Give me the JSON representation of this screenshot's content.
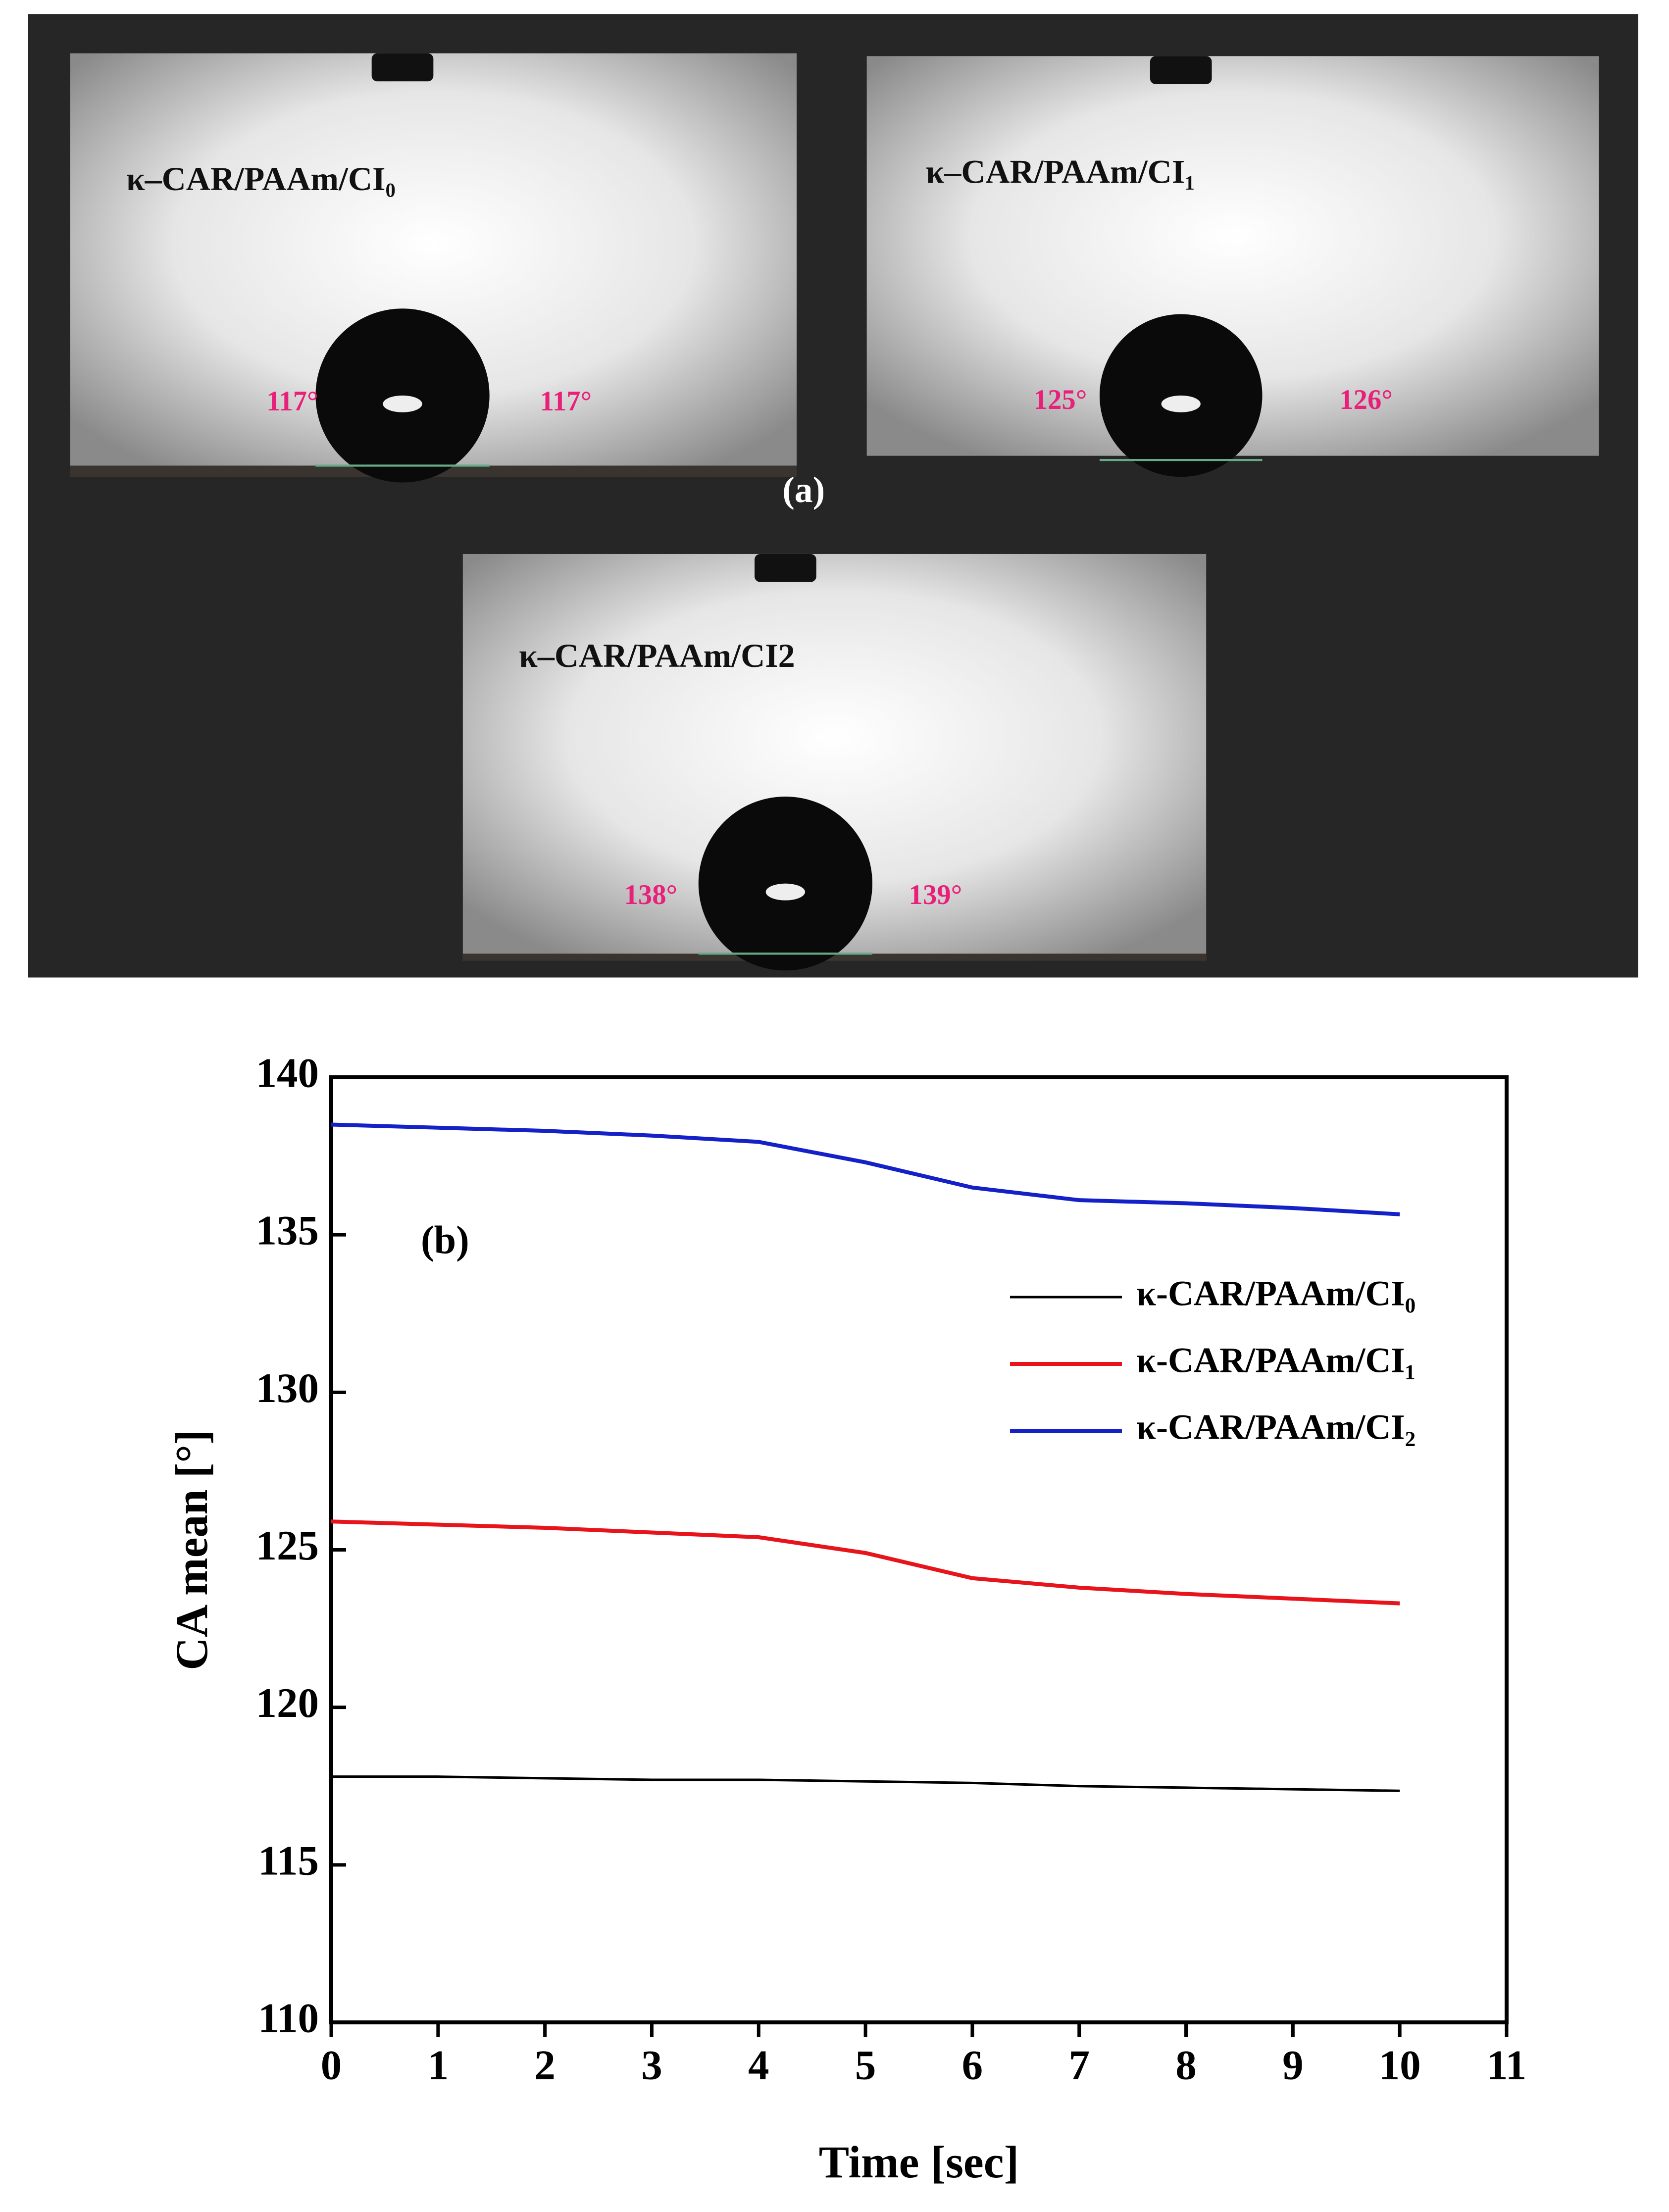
{
  "panel_a": {
    "label": "(a)",
    "photos": [
      {
        "label": "κ–CAR/PAAm/CI₀",
        "left_angle": "117°",
        "right_angle": "117°"
      },
      {
        "label": "κ–CAR/PAAm/CI₁",
        "left_angle": "125°",
        "right_angle": "126°"
      },
      {
        "label": "κ–CAR/PAAm/CI2",
        "left_angle": "138°",
        "right_angle": "139°"
      }
    ]
  },
  "chart_data": {
    "type": "line",
    "annotation": "(b)",
    "x_label": "Time [sec]",
    "y_label": "CA mean [°]",
    "x": [
      0,
      1,
      2,
      3,
      4,
      5,
      6,
      7,
      8,
      9,
      10
    ],
    "series": [
      {
        "name": "κ-CAR/PAAm/CI₀",
        "color": "#000000",
        "values": [
          117.8,
          117.8,
          117.75,
          117.7,
          117.7,
          117.65,
          117.6,
          117.5,
          117.45,
          117.4,
          117.35
        ]
      },
      {
        "name": "κ-CAR/PAAm/CI₁",
        "color": "#e8141c",
        "values": [
          125.9,
          125.8,
          125.7,
          125.55,
          125.4,
          124.9,
          124.1,
          123.8,
          123.6,
          123.45,
          123.3
        ]
      },
      {
        "name": "κ-CAR/PAAm/CI₂",
        "color": "#1420c8",
        "values": [
          138.5,
          138.4,
          138.3,
          138.15,
          137.95,
          137.3,
          136.5,
          136.1,
          136.0,
          135.85,
          135.65
        ]
      }
    ],
    "xlim": [
      0,
      11
    ],
    "xticks": [
      0,
      1,
      2,
      3,
      4,
      5,
      6,
      7,
      8,
      9,
      10,
      11
    ],
    "ylim": [
      110,
      140
    ],
    "yticks": [
      110,
      115,
      120,
      125,
      130,
      135,
      140
    ],
    "legend": "upper right"
  }
}
